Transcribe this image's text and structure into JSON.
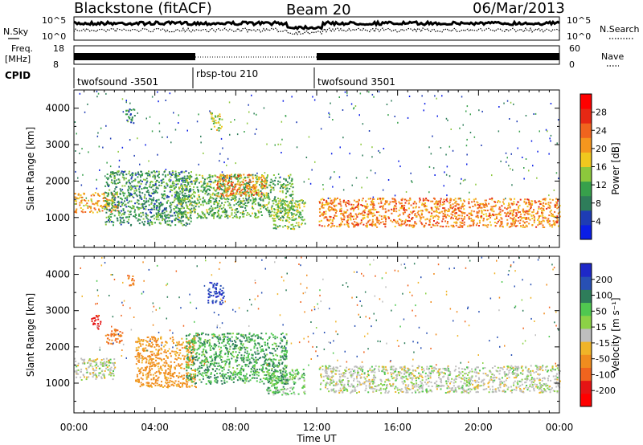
{
  "header": {
    "station": "Blackstone (fitACF)",
    "beam": "Beam 20",
    "date": "06/Mar/2013"
  },
  "panels": {
    "nsky_label": "N.Sky",
    "nsearch_label": "N.Search",
    "freq_label_1": "Freq.",
    "freq_label_2": "[MHz]",
    "nave_label": "Nave",
    "cpid_label": "CPID",
    "noise_ticks": [
      "10^5",
      "10^0"
    ],
    "freq_ticks": [
      "18",
      "8"
    ],
    "nave_ticks": [
      "60",
      "0"
    ]
  },
  "cpid_segments": [
    {
      "label": "twofsound -3501",
      "start_hour": 0
    },
    {
      "label": "rbsp-tou 210",
      "start_hour": 6
    },
    {
      "label": "twofsound 3501",
      "start_hour": 12
    }
  ],
  "colorbars": {
    "power": {
      "label": "Power [dB]",
      "ticks": [
        "4",
        "8",
        "12",
        "16",
        "20",
        "24",
        "28"
      ],
      "colors": [
        "#0a1ee6",
        "#1e3cb4",
        "#2e7d5a",
        "#37a04b",
        "#8cc83c",
        "#f0c81e",
        "#f5961e",
        "#f0641e",
        "#e62814",
        "#ff0000"
      ]
    },
    "velocity": {
      "label": "Velocity [m s⁻¹]",
      "ticks": [
        "200",
        "100",
        "50",
        "15",
        "-15",
        "-50",
        "-100",
        "-200"
      ],
      "colors": [
        "#1e28c8",
        "#2850b4",
        "#2e7d5a",
        "#50c850",
        "#8cd246",
        "#bebebe",
        "#f0b428",
        "#f08c1e",
        "#f0641e",
        "#e61414",
        "#ff0000"
      ]
    }
  },
  "chart_data": [
    {
      "type": "heatmap",
      "name": "power",
      "ylabel": "Slant Range [km]",
      "xlabel": "Time UT",
      "x_range_hours": [
        0,
        24
      ],
      "y_range_km": [
        180,
        4500
      ],
      "yticks": [
        1000,
        2000,
        3000,
        4000
      ],
      "xticks": [
        "00:00",
        "04:00",
        "08:00",
        "12:00",
        "16:00",
        "20:00",
        "00:00"
      ],
      "regions": [
        {
          "t": [
            0.0,
            2.2
          ],
          "r": [
            1150,
            1700
          ],
          "power_db": 20
        },
        {
          "t": [
            1.5,
            5.8
          ],
          "r": [
            800,
            2300
          ],
          "power_db": 10
        },
        {
          "t": [
            2.5,
            3.0
          ],
          "r": [
            3600,
            4000
          ],
          "power_db": 8
        },
        {
          "t": [
            5.0,
            10.8
          ],
          "r": [
            1000,
            2200
          ],
          "power_db": 12
        },
        {
          "t": [
            6.7,
            7.3
          ],
          "r": [
            3400,
            3900
          ],
          "power_db": 16
        },
        {
          "t": [
            7.0,
            9.5
          ],
          "r": [
            1600,
            2200
          ],
          "power_db": 22
        },
        {
          "t": [
            9.8,
            11.4
          ],
          "r": [
            700,
            1500
          ],
          "power_db": 14
        },
        {
          "t": [
            12.1,
            24.0
          ],
          "r": [
            750,
            1550
          ],
          "power_db": 22
        }
      ]
    },
    {
      "type": "heatmap",
      "name": "velocity",
      "ylabel": "Slant Range [km]",
      "xlabel": "Time UT",
      "x_range_hours": [
        0,
        24
      ],
      "y_range_km": [
        180,
        4500
      ],
      "yticks": [
        1000,
        2000,
        3000,
        4000
      ],
      "xticks": [
        "00:00",
        "04:00",
        "08:00",
        "12:00",
        "16:00",
        "20:00",
        "00:00"
      ],
      "regions": [
        {
          "t": [
            0.0,
            2.0
          ],
          "r": [
            1100,
            1700
          ],
          "velocity": 0
        },
        {
          "t": [
            0.8,
            1.3
          ],
          "r": [
            2500,
            2900
          ],
          "velocity": -200
        },
        {
          "t": [
            1.5,
            2.4
          ],
          "r": [
            2100,
            2500
          ],
          "velocity": -100
        },
        {
          "t": [
            2.6,
            3.0
          ],
          "r": [
            3700,
            4000
          ],
          "velocity": -100
        },
        {
          "t": [
            3.0,
            6.0
          ],
          "r": [
            900,
            2300
          ],
          "velocity": -60
        },
        {
          "t": [
            6.6,
            7.4
          ],
          "r": [
            3200,
            3800
          ],
          "velocity": 150
        },
        {
          "t": [
            5.5,
            10.5
          ],
          "r": [
            1000,
            2400
          ],
          "velocity": 30
        },
        {
          "t": [
            9.5,
            11.4
          ],
          "r": [
            700,
            1400
          ],
          "velocity": 20
        },
        {
          "t": [
            12.1,
            24.0
          ],
          "r": [
            750,
            1500
          ],
          "velocity": 0
        }
      ]
    }
  ]
}
